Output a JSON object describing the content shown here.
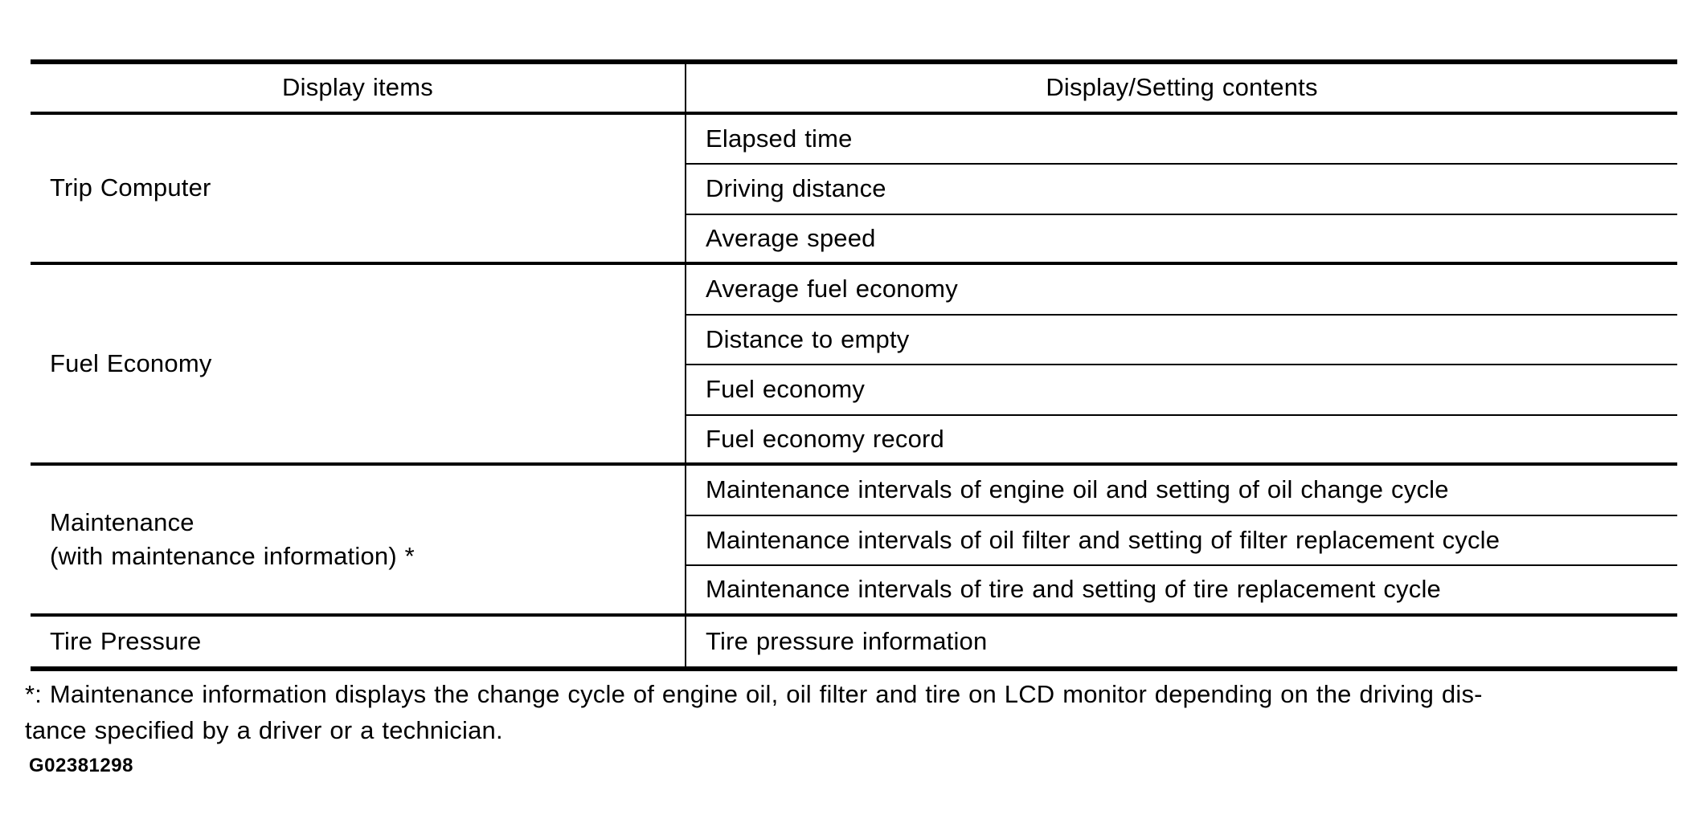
{
  "page": {
    "background_color": "#ffffff",
    "text_color": "#000000"
  },
  "table": {
    "columns": [
      {
        "header": "Display items"
      },
      {
        "header": "Display/Setting contents"
      }
    ],
    "sections": [
      {
        "item": "Trip Computer",
        "contents": [
          "Elapsed time",
          "Driving distance",
          "Average speed"
        ]
      },
      {
        "item": "Fuel Economy",
        "contents": [
          "Average fuel economy",
          "Distance to empty",
          "Fuel economy",
          "Fuel economy record"
        ]
      },
      {
        "item": "Maintenance",
        "item_line2": "(with maintenance information) *",
        "contents": [
          "Maintenance intervals of engine oil and setting of oil change cycle",
          "Maintenance intervals of oil filter and setting of filter replacement cycle",
          "Maintenance intervals of tire and setting of tire replacement cycle"
        ]
      },
      {
        "item": "Tire Pressure",
        "contents": [
          "Tire pressure information"
        ]
      }
    ]
  },
  "footnote": {
    "line1": "*: Maintenance information displays the change cycle of engine oil, oil filter and tire on LCD monitor depending on the driving dis-",
    "line2": "tance specified by a driver or a technician."
  },
  "figure_code": "G02381298"
}
